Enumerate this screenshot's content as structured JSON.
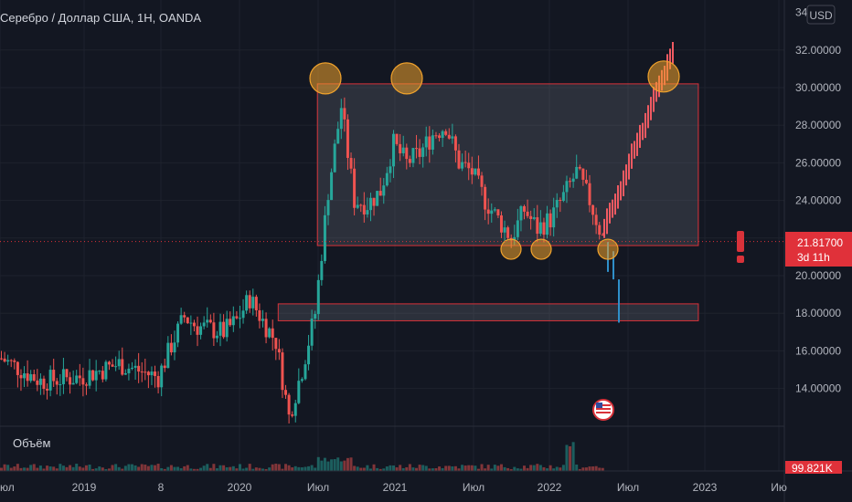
{
  "chart_data": {
    "type": "candlestick",
    "title": "Серебро / Доллар США, 1Н, OANDA",
    "currency": "USD",
    "y_axis": {
      "ticks": [
        "14.00000",
        "16.00000",
        "18.00000",
        "20.00000",
        "22.00000",
        "24.00000",
        "26.00000",
        "28.00000",
        "30.00000",
        "32.00000"
      ],
      "top_label_partial": "34",
      "ylim": [
        12.0,
        34.2
      ]
    },
    "x_axis": {
      "labels": [
        "юл",
        "2019",
        "8",
        "2020",
        "Июл",
        "2021",
        "Июл",
        "2022",
        "Июл",
        "2023",
        "Ию"
      ]
    },
    "price_marker": {
      "value": "21.81700",
      "countdown": "3d 11h"
    },
    "volume_label": "Объём",
    "volume_marker": "99.821K",
    "colors": {
      "up": "#26a69a",
      "down": "#ef5350",
      "projection_up": "#f05a62",
      "projection_down": "#2f8fc9",
      "box_border": "#d9323a",
      "circle": "#f0a22c",
      "background": "#131722",
      "price_label": "#e0313a"
    },
    "zones": [
      {
        "name": "range-box",
        "date_from": "2020-07",
        "date_to": "2022-12",
        "price_low": 21.6,
        "price_high": 30.2
      },
      {
        "name": "support-box",
        "date_from": "2020-04",
        "date_to": "2022-12",
        "price_low": 17.6,
        "price_high": 18.5
      }
    ],
    "pivots": [
      {
        "date": "2020-08",
        "price": 30.2,
        "size": "large"
      },
      {
        "date": "2021-02",
        "price": 30.2,
        "size": "large"
      },
      {
        "date": "2022-08",
        "price": 30.3,
        "size": "large"
      },
      {
        "date": "2021-09",
        "price": 21.6,
        "size": "small"
      },
      {
        "date": "2021-12",
        "price": 21.6,
        "size": "small"
      },
      {
        "date": "2022-05",
        "price": 21.6,
        "size": "small"
      }
    ]
  },
  "icons": {
    "alert": "exclamation-icon",
    "event": "us-flag-event-icon"
  }
}
